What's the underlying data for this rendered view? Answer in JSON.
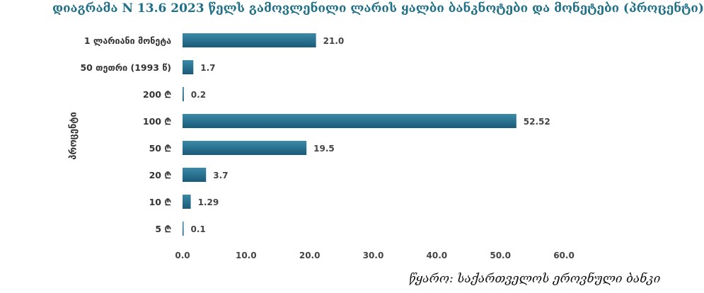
{
  "title": "დიაგრამა N 13.6 2023 წელს გამოვლენილი ლარის ყალბი ბანკნოტები და მონეტები (პროცენტი)",
  "source": "წყარო: საქართველოს ეროვნული ბანკი",
  "colors": {
    "bar_top": "#3b8aa8",
    "bar_bottom": "#1b5a78",
    "title": "#1f6f86"
  },
  "chart_data": {
    "type": "bar",
    "orientation": "horizontal",
    "title": "დიაგრამა N 13.6 2023 წელს გამოვლენილი ლარის ყალბი ბანკნოტები და მონეტები (პროცენტი)",
    "ylabel": "პროცენტი",
    "xlabel": "",
    "categories": [
      "1 ლარიანი მონეტა",
      "50 თეთრი (1993 წ)",
      "200 ₾",
      "100 ₾",
      "50 ₾",
      "20 ₾",
      "10 ₾",
      "5 ₾"
    ],
    "values": [
      21.0,
      1.7,
      0.2,
      52.52,
      19.5,
      3.7,
      1.29,
      0.1
    ],
    "value_labels": [
      "21.0",
      "1.7",
      "0.2",
      "52.52",
      "19.5",
      "3.7",
      "1.29",
      "0.1"
    ],
    "xlim": [
      0,
      60
    ],
    "xticks": [
      "0.0",
      "10.0",
      "20.0",
      "30.0",
      "40.0",
      "50.0",
      "60.0"
    ],
    "grid": false,
    "legend": "none"
  }
}
